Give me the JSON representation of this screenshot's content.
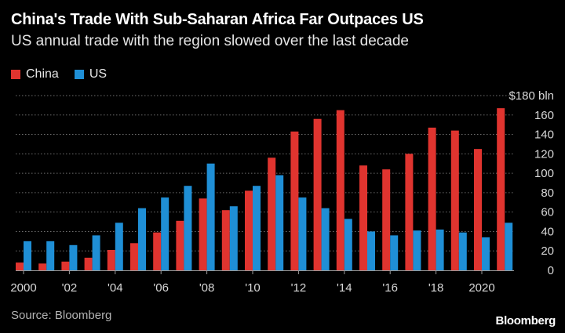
{
  "title": "China's Trade With Sub-Saharan Africa Far Outpaces US",
  "subtitle": "US annual trade with the region slowed over the last decade",
  "source": "Source: Bloomberg",
  "brand": "Bloomberg",
  "colors": {
    "China": "#e0342f",
    "US": "#1f8fd6",
    "grid": "#6e6e6e",
    "text": "#d9d9d9"
  },
  "chart_data": {
    "type": "bar",
    "categories": [
      "2000",
      "2001",
      "2002",
      "2003",
      "2004",
      "2005",
      "2006",
      "2007",
      "2008",
      "2009",
      "2010",
      "2011",
      "2012",
      "2013",
      "2014",
      "2015",
      "2016",
      "2017",
      "2018",
      "2019",
      "2020",
      "2021"
    ],
    "series": [
      {
        "name": "China",
        "values": [
          8,
          7,
          9,
          13,
          21,
          28,
          39,
          51,
          74,
          62,
          82,
          116,
          143,
          156,
          165,
          108,
          104,
          120,
          147,
          144,
          125,
          167
        ]
      },
      {
        "name": "US",
        "values": [
          30,
          30,
          26,
          36,
          49,
          64,
          75,
          87,
          110,
          66,
          87,
          98,
          75,
          64,
          53,
          40,
          36,
          41,
          42,
          39,
          34,
          49
        ]
      }
    ],
    "ylim": [
      0,
      180
    ],
    "yticks": [
      0,
      20,
      40,
      60,
      80,
      100,
      120,
      140,
      160,
      180
    ],
    "ytick_labels": [
      "0",
      "20",
      "40",
      "60",
      "80",
      "100",
      "120",
      "140",
      "160",
      "$180 bln"
    ],
    "xtick_labels": [
      {
        "category": "2000",
        "label": "2000"
      },
      {
        "category": "2002",
        "label": "'02"
      },
      {
        "category": "2004",
        "label": "'04"
      },
      {
        "category": "2006",
        "label": "'06"
      },
      {
        "category": "2008",
        "label": "'08"
      },
      {
        "category": "2010",
        "label": "'10"
      },
      {
        "category": "2012",
        "label": "'12"
      },
      {
        "category": "2014",
        "label": "'14"
      },
      {
        "category": "2016",
        "label": "'16"
      },
      {
        "category": "2018",
        "label": "'18"
      },
      {
        "category": "2020",
        "label": "2020"
      }
    ],
    "legend": "top-left",
    "grid": true
  }
}
